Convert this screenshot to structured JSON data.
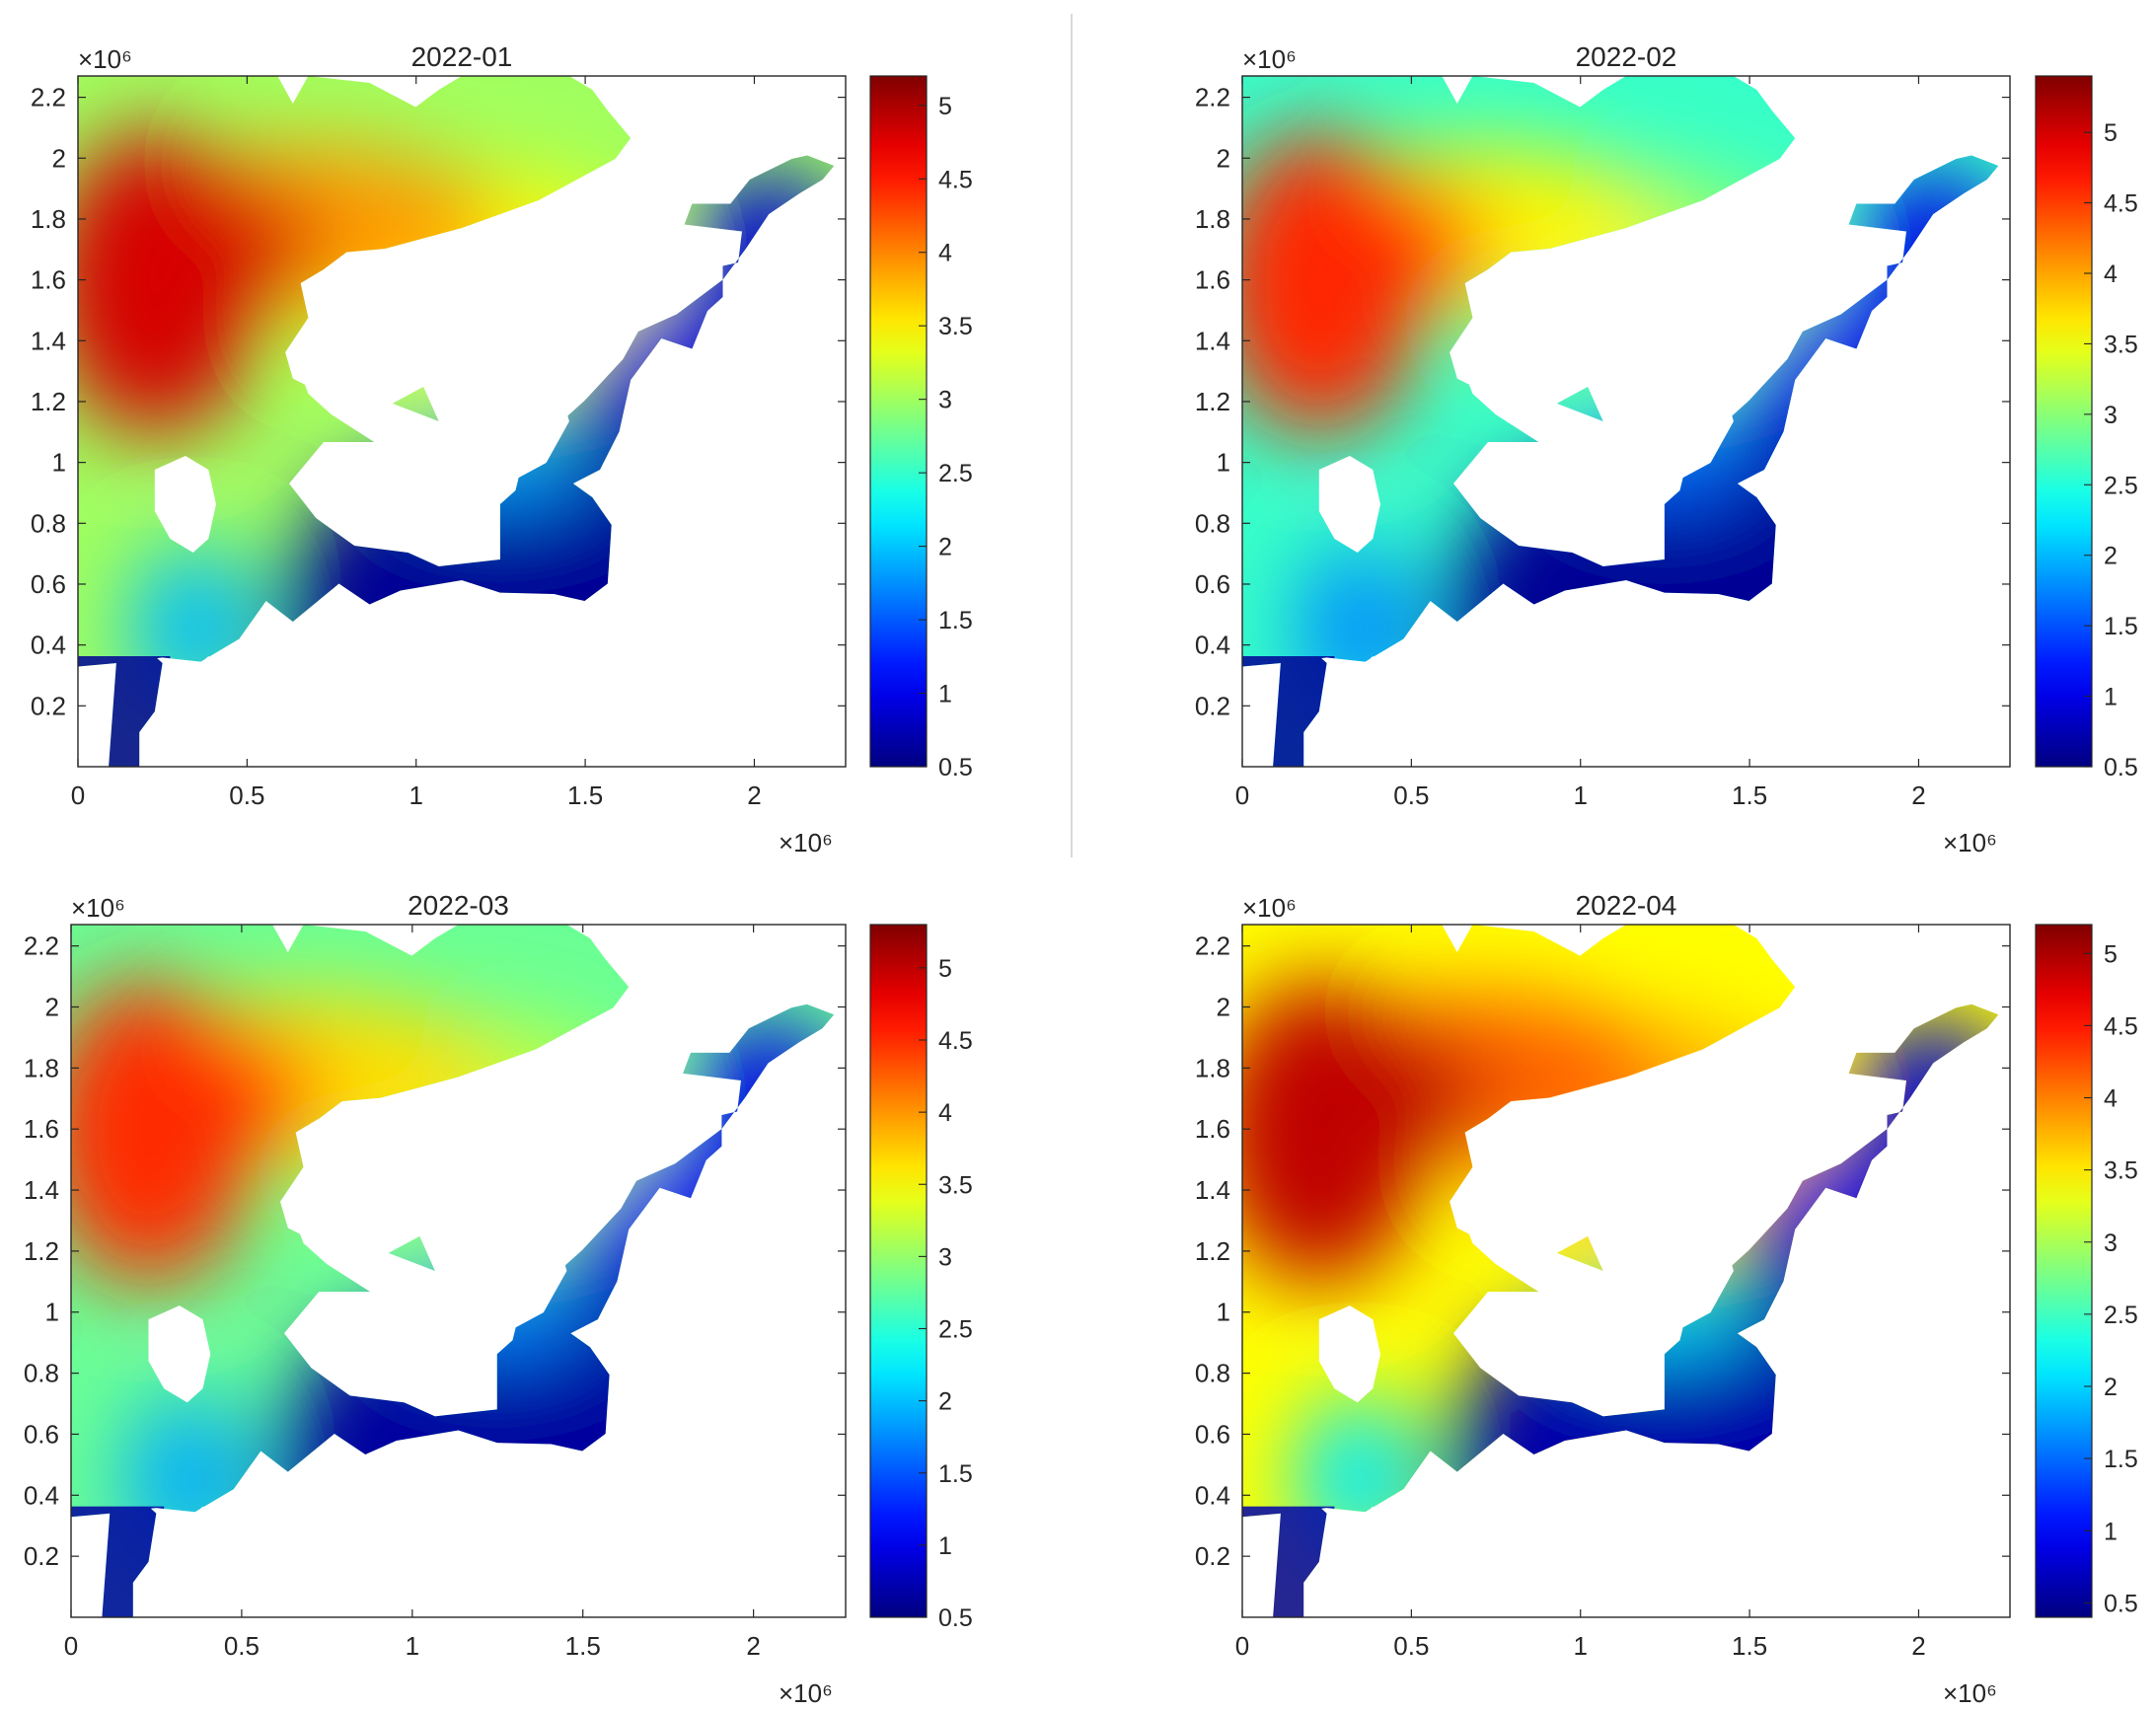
{
  "figure": {
    "colormap": "jet",
    "background": "#ffffff",
    "axis_color": "#262626",
    "land_color": "#ffffff"
  },
  "chart_data": [
    {
      "type": "heatmap",
      "title": "2022-01",
      "xlabel": "",
      "ylabel": "",
      "x_exponent_label": "×10⁶",
      "y_exponent_label": "×10⁶",
      "xlim": [
        0,
        2.27
      ],
      "ylim": [
        0,
        2.27
      ],
      "x_ticks": [
        0,
        0.5,
        1,
        1.5,
        2
      ],
      "x_tick_labels": [
        "0",
        "0.5",
        "1",
        "1.5",
        "2"
      ],
      "y_ticks": [
        0.2,
        0.4,
        0.6,
        0.8,
        1,
        1.2,
        1.4,
        1.6,
        1.8,
        2,
        2.2
      ],
      "y_tick_labels": [
        "0.2",
        "0.4",
        "0.6",
        "0.8",
        "1",
        "1.2",
        "1.4",
        "1.6",
        "1.8",
        "2",
        "2.2"
      ],
      "colorbar": {
        "limits": [
          0.5,
          5.2
        ],
        "ticks": [
          0.5,
          1,
          1.5,
          2,
          2.5,
          3,
          3.5,
          4,
          4.5,
          5
        ],
        "tick_labels": [
          "0.5",
          "1",
          "1.5",
          "2",
          "2.5",
          "3",
          "3.5",
          "4",
          "4.5",
          "5"
        ]
      },
      "field": {
        "peak_value": 4.8,
        "west_value": 3.0,
        "basin_value": 0.6,
        "southeast_value": 0.9
      }
    },
    {
      "type": "heatmap",
      "title": "2022-02",
      "xlabel": "",
      "ylabel": "",
      "x_exponent_label": "×10⁶",
      "y_exponent_label": "×10⁶",
      "xlim": [
        0,
        2.27
      ],
      "ylim": [
        0,
        2.27
      ],
      "x_ticks": [
        0,
        0.5,
        1,
        1.5,
        2
      ],
      "x_tick_labels": [
        "0",
        "0.5",
        "1",
        "1.5",
        "2"
      ],
      "y_ticks": [
        0.2,
        0.4,
        0.6,
        0.8,
        1,
        1.2,
        1.4,
        1.6,
        1.8,
        2,
        2.2
      ],
      "y_tick_labels": [
        "0.2",
        "0.4",
        "0.6",
        "0.8",
        "1",
        "1.2",
        "1.4",
        "1.6",
        "1.8",
        "2",
        "2.2"
      ],
      "colorbar": {
        "limits": [
          0.5,
          5.4
        ],
        "ticks": [
          0.5,
          1,
          1.5,
          2,
          2.5,
          3,
          3.5,
          4,
          4.5,
          5
        ],
        "tick_labels": [
          "0.5",
          "1",
          "1.5",
          "2",
          "2.5",
          "3",
          "3.5",
          "4",
          "4.5",
          "5"
        ]
      },
      "field": {
        "peak_value": 4.6,
        "west_value": 2.6,
        "basin_value": 0.6,
        "southeast_value": 1.0
      }
    },
    {
      "type": "heatmap",
      "title": "2022-03",
      "xlabel": "",
      "ylabel": "",
      "x_exponent_label": "×10⁶",
      "y_exponent_label": "×10⁶",
      "xlim": [
        0,
        2.27
      ],
      "ylim": [
        0,
        2.27
      ],
      "x_ticks": [
        0,
        0.5,
        1,
        1.5,
        2
      ],
      "x_tick_labels": [
        "0",
        "0.5",
        "1",
        "1.5",
        "2"
      ],
      "y_ticks": [
        0.2,
        0.4,
        0.6,
        0.8,
        1,
        1.2,
        1.4,
        1.6,
        1.8,
        2,
        2.2
      ],
      "y_tick_labels": [
        "0.2",
        "0.4",
        "0.6",
        "0.8",
        "1",
        "1.2",
        "1.4",
        "1.6",
        "1.8",
        "2",
        "2.2"
      ],
      "colorbar": {
        "limits": [
          0.5,
          5.3
        ],
        "ticks": [
          0.5,
          1,
          1.5,
          2,
          2.5,
          3,
          3.5,
          4,
          4.5,
          5
        ],
        "tick_labels": [
          "0.5",
          "1",
          "1.5",
          "2",
          "2.5",
          "3",
          "3.5",
          "4",
          "4.5",
          "5"
        ]
      },
      "field": {
        "peak_value": 4.5,
        "west_value": 2.8,
        "basin_value": 0.65,
        "southeast_value": 1.0
      }
    },
    {
      "type": "heatmap",
      "title": "2022-04",
      "xlabel": "",
      "ylabel": "",
      "x_exponent_label": "×10⁶",
      "y_exponent_label": "×10⁶",
      "xlim": [
        0,
        2.27
      ],
      "ylim": [
        0,
        2.27
      ],
      "x_ticks": [
        0,
        0.5,
        1,
        1.5,
        2
      ],
      "x_tick_labels": [
        "0",
        "0.5",
        "1",
        "1.5",
        "2"
      ],
      "y_ticks": [
        0.2,
        0.4,
        0.6,
        0.8,
        1,
        1.2,
        1.4,
        1.6,
        1.8,
        2,
        2.2
      ],
      "y_tick_labels": [
        "0.2",
        "0.4",
        "0.6",
        "0.8",
        "1",
        "1.2",
        "1.4",
        "1.6",
        "1.8",
        "2",
        "2.2"
      ],
      "colorbar": {
        "limits": [
          0.4,
          5.2
        ],
        "ticks": [
          0.5,
          1,
          1.5,
          2,
          2.5,
          3,
          3.5,
          4,
          4.5,
          5
        ],
        "tick_labels": [
          "0.5",
          "1",
          "1.5",
          "2",
          "2.5",
          "3",
          "3.5",
          "4",
          "4.5",
          "5"
        ]
      },
      "field": {
        "peak_value": 4.9,
        "west_value": 3.4,
        "basin_value": 0.6,
        "southeast_value": 0.8
      }
    }
  ]
}
